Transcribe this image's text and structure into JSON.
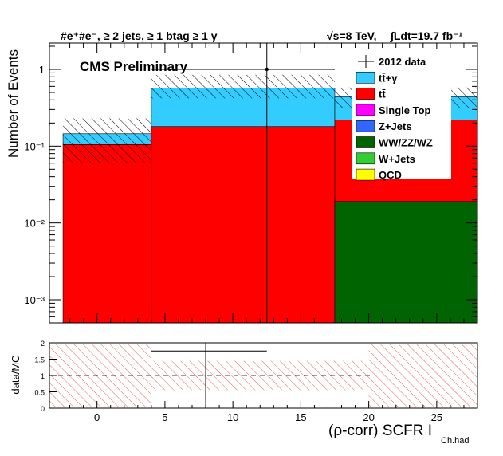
{
  "chart_data": [
    {
      "type": "bar",
      "stacked": true,
      "title_left": "#e⁺#e⁻, ≥ 2 jets, ≥ 1 btag ≥ 1 γ",
      "title_right_energy": "√s=8 TeV,",
      "title_right_lumi": "∫Ldt=19.7 fb⁻¹",
      "prelim": "CMS Preliminary",
      "ylabel": "Number of Events",
      "xlabel_main": "(ρ-corr) SCFR I",
      "xlabel_sub": "Ch.had",
      "xlim": [
        -3.5,
        28
      ],
      "ylim": [
        0.0005,
        2.2
      ],
      "yscale": "log",
      "xticks": [
        "0",
        "5",
        "10",
        "15",
        "20",
        "25"
      ],
      "yticks": [
        "10⁻³",
        "10⁻²",
        "10⁻¹",
        "1"
      ],
      "bin_edges": [
        -2.5,
        4.0,
        17.5,
        28.0
      ],
      "series": [
        {
          "name": "WW/ZZ/WZ",
          "color": "#006400",
          "values": [
            0,
            0,
            0.019
          ]
        },
        {
          "name": "tt̄",
          "color": "#ff0000",
          "values": [
            0.105,
            0.18,
            0.2
          ]
        },
        {
          "name": "tt̄+γ",
          "color": "#33ccff",
          "values": [
            0.04,
            0.39,
            0.22
          ]
        }
      ],
      "uncertainty_band": {
        "up": [
          0.23,
          0.85,
          0.58
        ],
        "down": [
          0.06,
          0.42,
          0.31
        ]
      },
      "data_points": [
        {
          "x": 12.5,
          "y": 1.0,
          "xerr_lo": 8.5,
          "xerr_hi": 5.0
        }
      ],
      "legend_position": "top-right",
      "legend": [
        {
          "label": "2012 data",
          "kind": "marker",
          "color": "#000000"
        },
        {
          "label": "tt̄+γ",
          "kind": "fill",
          "color": "#33ccff"
        },
        {
          "label": "tt̄",
          "kind": "fill",
          "color": "#ff0000"
        },
        {
          "label": "Single Top",
          "kind": "fill",
          "color": "#ff00ff"
        },
        {
          "label": "Z+Jets",
          "kind": "fill",
          "color": "#3366ff"
        },
        {
          "label": "WW/ZZ/WZ",
          "kind": "fill",
          "color": "#006400"
        },
        {
          "label": "W+Jets",
          "kind": "fill",
          "color": "#33cc33"
        },
        {
          "label": "QCD",
          "kind": "fill",
          "color": "#ffff00"
        }
      ]
    },
    {
      "type": "ratio",
      "ylabel": "data/MC",
      "ylim": [
        0,
        2
      ],
      "yticks": [
        "0",
        "0.5",
        "1",
        "1.5",
        "2"
      ],
      "reference_line": 1,
      "band_bins": [
        [
          -3.5,
          4.0
        ],
        [
          4.0,
          20.0
        ],
        [
          20.0,
          28.0
        ]
      ],
      "band": [
        [
          0.05,
          1.95
        ],
        [
          0.55,
          1.45
        ],
        [
          0.05,
          1.95
        ]
      ],
      "data_points": [
        {
          "x": 8.0,
          "y": 1.75,
          "xerr_lo": 4.0,
          "xerr_hi": 4.5
        }
      ]
    }
  ]
}
